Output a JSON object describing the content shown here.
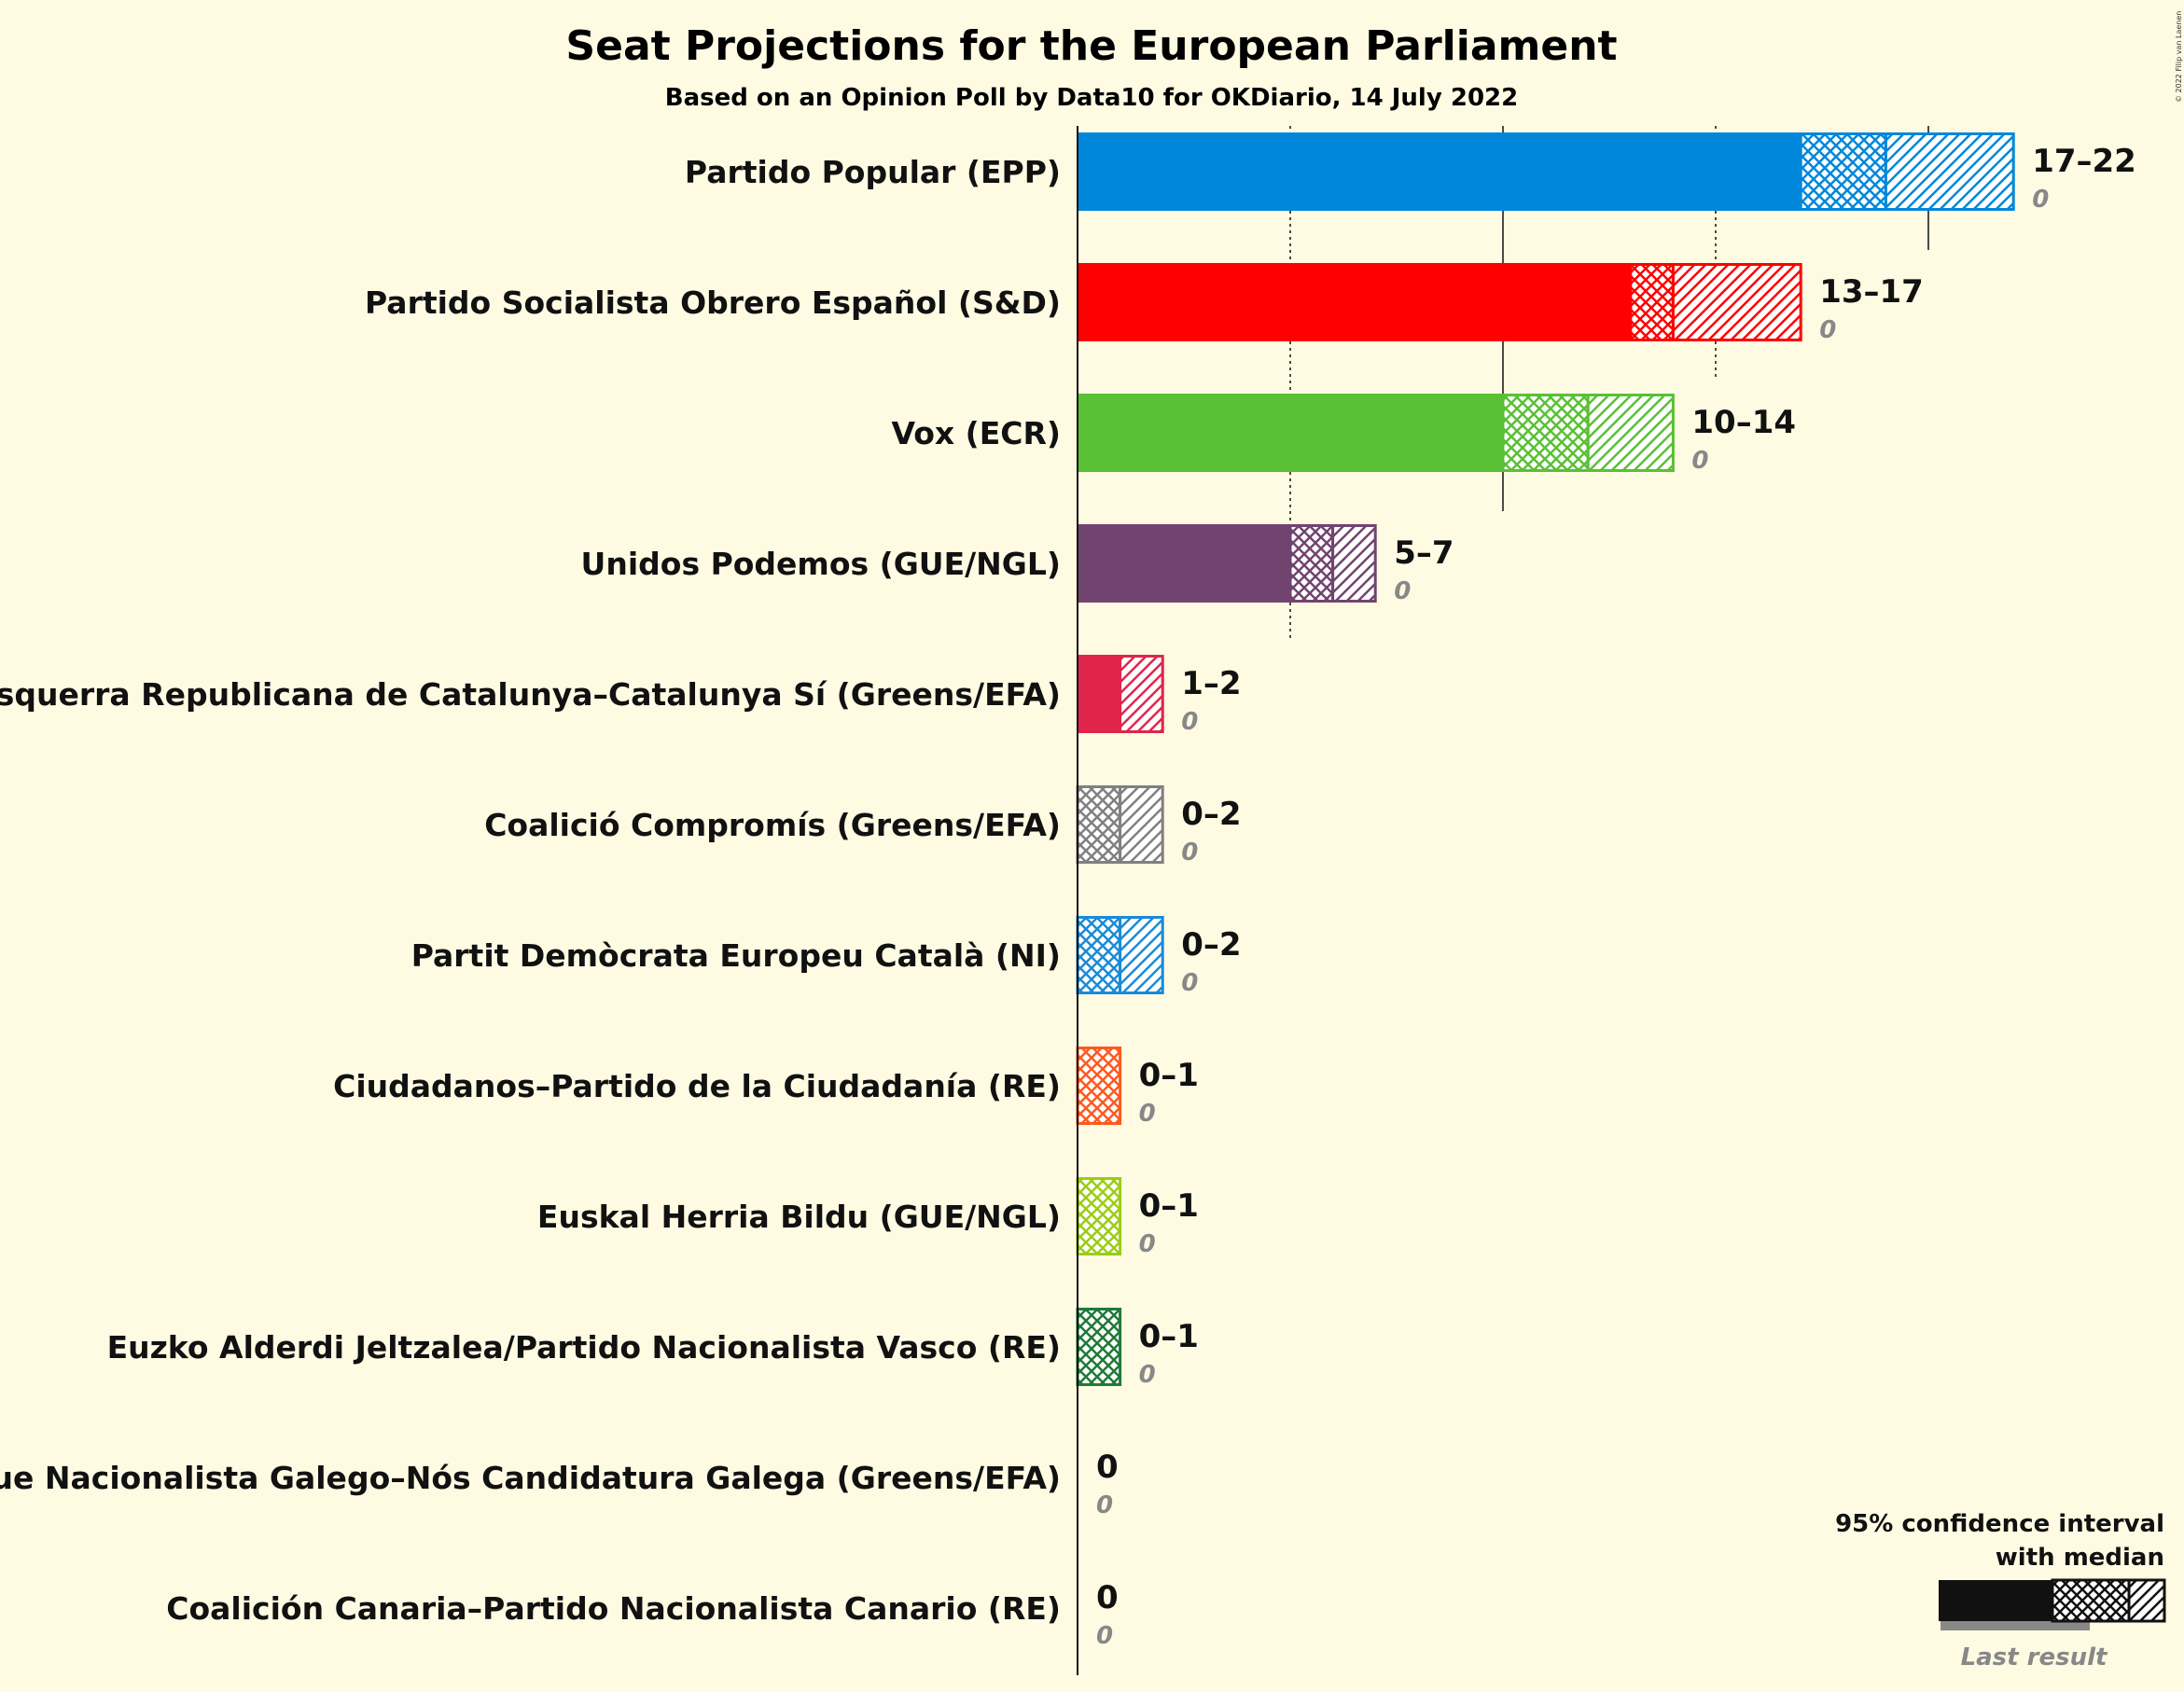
{
  "title": "Seat Projections for the European Parliament",
  "subtitle": "Based on an Opinion Poll by Data10 for OKDiario, 14 July 2022",
  "copyright": "© 2022 Filip van Laenen",
  "legend": {
    "line1": "95% confidence interval",
    "line2": "with median",
    "last_result": "Last result"
  },
  "chart_data": {
    "type": "bar",
    "orientation": "horizontal",
    "x_unit": "seats",
    "xlim": [
      0,
      22
    ],
    "gridlines_solid": [
      10,
      20
    ],
    "gridlines_dotted": [
      5,
      15
    ],
    "parties": [
      {
        "name": "Partido Popular (EPP)",
        "low": 17,
        "median": 19,
        "high": 22,
        "last": 0,
        "range_label": "17–22",
        "last_label": "0",
        "color": "#0087dc"
      },
      {
        "name": "Partido Socialista Obrero Español (S&D)",
        "low": 13,
        "median": 14,
        "high": 17,
        "last": 0,
        "range_label": "13–17",
        "last_label": "0",
        "color": "#ff0000"
      },
      {
        "name": "Vox (ECR)",
        "low": 10,
        "median": 12,
        "high": 14,
        "last": 0,
        "range_label": "10–14",
        "last_label": "0",
        "color": "#5ac035"
      },
      {
        "name": "Unidos Podemos (GUE/NGL)",
        "low": 5,
        "median": 6,
        "high": 7,
        "last": 0,
        "range_label": "5–7",
        "last_label": "0",
        "color": "#714470"
      },
      {
        "name": "Esquerra Republicana de Catalunya–Catalunya Sí (Greens/EFA)",
        "low": 1,
        "median": 1,
        "high": 2,
        "last": 0,
        "range_label": "1–2",
        "last_label": "0",
        "color": "#e1254a"
      },
      {
        "name": "Coalició Compromís (Greens/EFA)",
        "low": 0,
        "median": 1,
        "high": 2,
        "last": 0,
        "range_label": "0–2",
        "last_label": "0",
        "color": "#808080"
      },
      {
        "name": "Partit Demòcrata Europeu Català (NI)",
        "low": 0,
        "median": 1,
        "high": 2,
        "last": 0,
        "range_label": "0–2",
        "last_label": "0",
        "color": "#1a8bd8"
      },
      {
        "name": "Ciudadanos–Partido de la Ciudadanía (RE)",
        "low": 0,
        "median": 1,
        "high": 1,
        "last": 0,
        "range_label": "0–1",
        "last_label": "0",
        "color": "#fe5a1e"
      },
      {
        "name": "Euskal Herria Bildu (GUE/NGL)",
        "low": 0,
        "median": 1,
        "high": 1,
        "last": 0,
        "range_label": "0–1",
        "last_label": "0",
        "color": "#9ccd15"
      },
      {
        "name": "Euzko Alderdi Jeltzalea/Partido Nacionalista Vasco (RE)",
        "low": 0,
        "median": 1,
        "high": 1,
        "last": 0,
        "range_label": "0–1",
        "last_label": "0",
        "color": "#1f7a37"
      },
      {
        "name": "Bloque Nacionalista Galego–Nós Candidatura Galega (Greens/EFA)",
        "low": 0,
        "median": 0,
        "high": 0,
        "last": 0,
        "range_label": "0",
        "last_label": "0",
        "color": "#87c4e3"
      },
      {
        "name": "Coalición Canaria–Partido Nacionalista Canario (RE)",
        "low": 0,
        "median": 0,
        "high": 0,
        "last": 0,
        "range_label": "0",
        "last_label": "0",
        "color": "#ffd700"
      }
    ]
  }
}
